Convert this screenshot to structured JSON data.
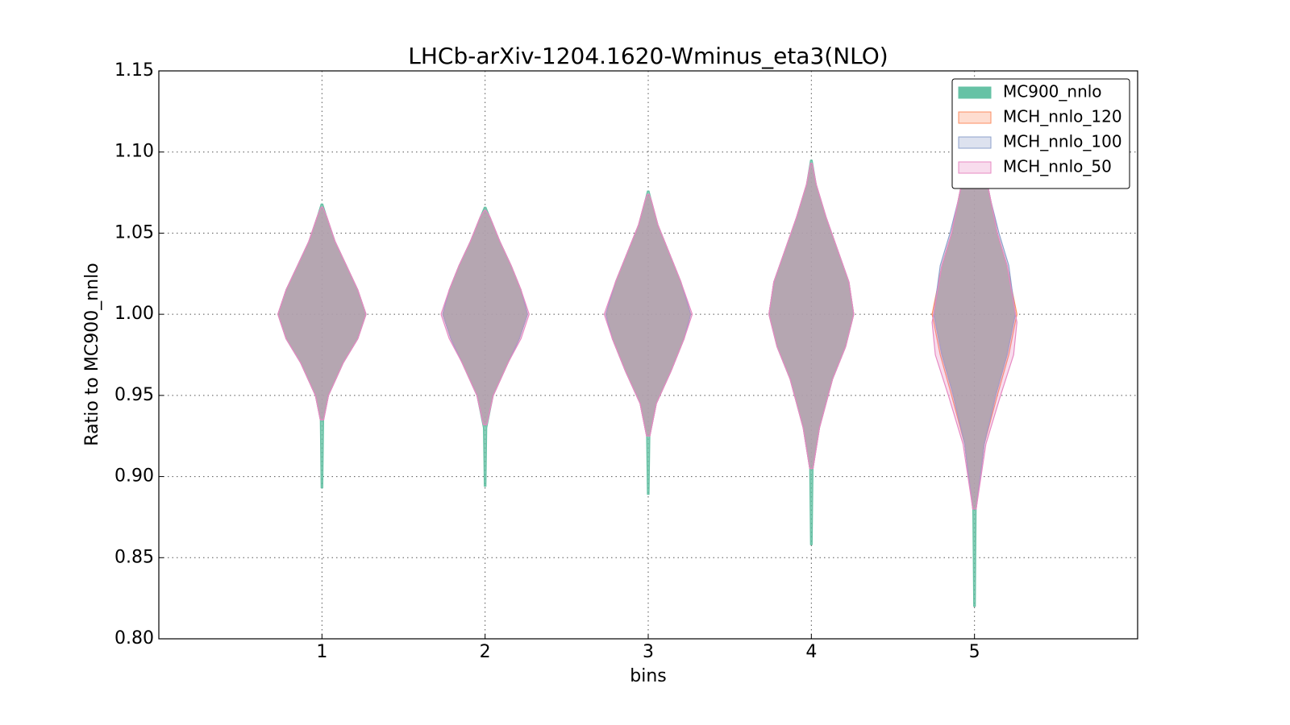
{
  "chart_data": {
    "type": "violin",
    "title": "LHCb-arXiv-1204.1620-Wminus_eta3(NLO)",
    "xlabel": "bins",
    "ylabel": "Ratio to MC900_nnlo",
    "x": [
      1,
      2,
      3,
      4,
      5
    ],
    "xlim": [
      0,
      6
    ],
    "xticks": [
      1,
      2,
      3,
      4,
      5
    ],
    "ylim": [
      0.8,
      1.15
    ],
    "yticks": [
      {
        "value": 0.8,
        "label": "0.80"
      },
      0.85,
      {
        "value": 0.9,
        "label": "0.90"
      },
      0.95,
      {
        "value": 1,
        "label": "1.00"
      },
      1.05,
      {
        "value": 1.1,
        "label": "1.10"
      },
      1.15
    ],
    "grid": true,
    "legend": "upper right",
    "series": [
      {
        "name": "MC900_nnlo",
        "color": "#66c2a5",
        "violins": [
          {
            "y": [
              0.893,
              0.935,
              0.95,
              0.97,
              0.985,
              1.0,
              1.015,
              1.03,
              1.045,
              1.06,
              1.068
            ],
            "width": [
              0.005,
              0.01,
              0.04,
              0.13,
              0.22,
              0.27,
              0.22,
              0.15,
              0.08,
              0.03,
              0.005
            ]
          },
          {
            "y": [
              0.894,
              0.93,
              0.95,
              0.97,
              0.985,
              1.0,
              1.015,
              1.03,
              1.045,
              1.06,
              1.066
            ],
            "width": [
              0.005,
              0.01,
              0.05,
              0.14,
              0.21,
              0.26,
              0.22,
              0.16,
              0.09,
              0.03,
              0.005
            ]
          },
          {
            "y": [
              0.889,
              0.925,
              0.945,
              0.965,
              0.985,
              1.0,
              1.02,
              1.04,
              1.055,
              1.07,
              1.076
            ],
            "width": [
              0.005,
              0.01,
              0.05,
              0.14,
              0.22,
              0.26,
              0.2,
              0.12,
              0.06,
              0.02,
              0.005
            ]
          },
          {
            "y": [
              0.858,
              0.905,
              0.93,
              0.96,
              0.98,
              1.0,
              1.02,
              1.04,
              1.06,
              1.08,
              1.095
            ],
            "width": [
              0.005,
              0.01,
              0.05,
              0.13,
              0.21,
              0.26,
              0.23,
              0.16,
              0.09,
              0.03,
              0.005
            ]
          },
          {
            "y": [
              0.82,
              0.88,
              0.92,
              0.95,
              0.975,
              1.0,
              1.03,
              1.05,
              1.07,
              1.1,
              1.125
            ],
            "width": [
              0.005,
              0.01,
              0.06,
              0.13,
              0.2,
              0.25,
              0.2,
              0.14,
              0.1,
              0.04,
              0.005
            ]
          }
        ]
      },
      {
        "name": "MCH_nnlo_120",
        "color": "#fc8d62",
        "violins": [
          {
            "y": [
              0.935,
              0.95,
              0.97,
              0.985,
              1.0,
              1.015,
              1.03,
              1.045,
              1.06,
              1.066
            ],
            "width": [
              0.01,
              0.04,
              0.13,
              0.22,
              0.27,
              0.22,
              0.15,
              0.08,
              0.03,
              0.005
            ]
          },
          {
            "y": [
              0.932,
              0.95,
              0.97,
              0.985,
              1.0,
              1.015,
              1.03,
              1.045,
              1.06,
              1.064
            ],
            "width": [
              0.01,
              0.05,
              0.14,
              0.21,
              0.26,
              0.22,
              0.16,
              0.09,
              0.03,
              0.005
            ]
          },
          {
            "y": [
              0.925,
              0.945,
              0.965,
              0.985,
              1.0,
              1.02,
              1.04,
              1.055,
              1.07,
              1.074
            ],
            "width": [
              0.01,
              0.05,
              0.14,
              0.22,
              0.26,
              0.2,
              0.12,
              0.06,
              0.02,
              0.005
            ]
          },
          {
            "y": [
              0.905,
              0.93,
              0.96,
              0.98,
              1.0,
              1.02,
              1.04,
              1.06,
              1.08,
              1.093
            ],
            "width": [
              0.01,
              0.05,
              0.13,
              0.21,
              0.26,
              0.23,
              0.16,
              0.09,
              0.03,
              0.005
            ]
          },
          {
            "y": [
              0.88,
              0.92,
              0.95,
              0.975,
              1.0,
              1.03,
              1.05,
              1.07,
              1.1,
              1.12
            ],
            "width": [
              0.01,
              0.06,
              0.14,
              0.21,
              0.26,
              0.2,
              0.14,
              0.1,
              0.04,
              0.005
            ]
          }
        ]
      },
      {
        "name": "MCH_nnlo_100",
        "color": "#8da0cb",
        "violins": [
          {
            "y": [
              0.935,
              0.95,
              0.97,
              0.985,
              1.0,
              1.015,
              1.03,
              1.045,
              1.06,
              1.066
            ],
            "width": [
              0.01,
              0.04,
              0.13,
              0.22,
              0.27,
              0.22,
              0.15,
              0.08,
              0.03,
              0.005
            ]
          },
          {
            "y": [
              0.932,
              0.95,
              0.97,
              0.985,
              1.0,
              1.015,
              1.03,
              1.045,
              1.06,
              1.064
            ],
            "width": [
              0.01,
              0.05,
              0.14,
              0.21,
              0.26,
              0.22,
              0.16,
              0.09,
              0.03,
              0.005
            ]
          },
          {
            "y": [
              0.925,
              0.945,
              0.965,
              0.985,
              1.0,
              1.02,
              1.04,
              1.055,
              1.07,
              1.074
            ],
            "width": [
              0.01,
              0.05,
              0.14,
              0.22,
              0.26,
              0.2,
              0.12,
              0.06,
              0.02,
              0.005
            ]
          },
          {
            "y": [
              0.905,
              0.93,
              0.96,
              0.98,
              1.0,
              1.02,
              1.04,
              1.06,
              1.08,
              1.093
            ],
            "width": [
              0.01,
              0.05,
              0.13,
              0.21,
              0.26,
              0.23,
              0.16,
              0.09,
              0.03,
              0.005
            ]
          },
          {
            "y": [
              0.88,
              0.92,
              0.95,
              0.975,
              1.0,
              1.03,
              1.05,
              1.07,
              1.1,
              1.12
            ],
            "width": [
              0.01,
              0.06,
              0.13,
              0.2,
              0.25,
              0.21,
              0.15,
              0.1,
              0.04,
              0.005
            ]
          }
        ]
      },
      {
        "name": "MCH_nnlo_50",
        "color": "#e78ac3",
        "violins": [
          {
            "y": [
              0.935,
              0.95,
              0.97,
              0.985,
              1.0,
              1.015,
              1.03,
              1.045,
              1.06,
              1.066
            ],
            "width": [
              0.01,
              0.04,
              0.13,
              0.22,
              0.27,
              0.22,
              0.15,
              0.08,
              0.03,
              0.005
            ]
          },
          {
            "y": [
              0.932,
              0.95,
              0.97,
              0.985,
              1.0,
              1.015,
              1.03,
              1.045,
              1.06,
              1.064
            ],
            "width": [
              0.01,
              0.05,
              0.14,
              0.22,
              0.27,
              0.22,
              0.16,
              0.09,
              0.03,
              0.005
            ]
          },
          {
            "y": [
              0.925,
              0.945,
              0.965,
              0.985,
              1.0,
              1.02,
              1.04,
              1.055,
              1.07,
              1.074
            ],
            "width": [
              0.01,
              0.05,
              0.14,
              0.22,
              0.27,
              0.2,
              0.12,
              0.06,
              0.02,
              0.005
            ]
          },
          {
            "y": [
              0.905,
              0.93,
              0.96,
              0.98,
              1.0,
              1.02,
              1.04,
              1.06,
              1.08,
              1.093
            ],
            "width": [
              0.01,
              0.05,
              0.13,
              0.21,
              0.26,
              0.23,
              0.16,
              0.09,
              0.03,
              0.005
            ]
          },
          {
            "y": [
              0.88,
              0.92,
              0.95,
              0.975,
              0.995,
              1.03,
              1.05,
              1.07,
              1.1,
              1.12
            ],
            "width": [
              0.01,
              0.07,
              0.16,
              0.24,
              0.26,
              0.2,
              0.14,
              0.1,
              0.04,
              0.005
            ]
          }
        ]
      }
    ]
  }
}
